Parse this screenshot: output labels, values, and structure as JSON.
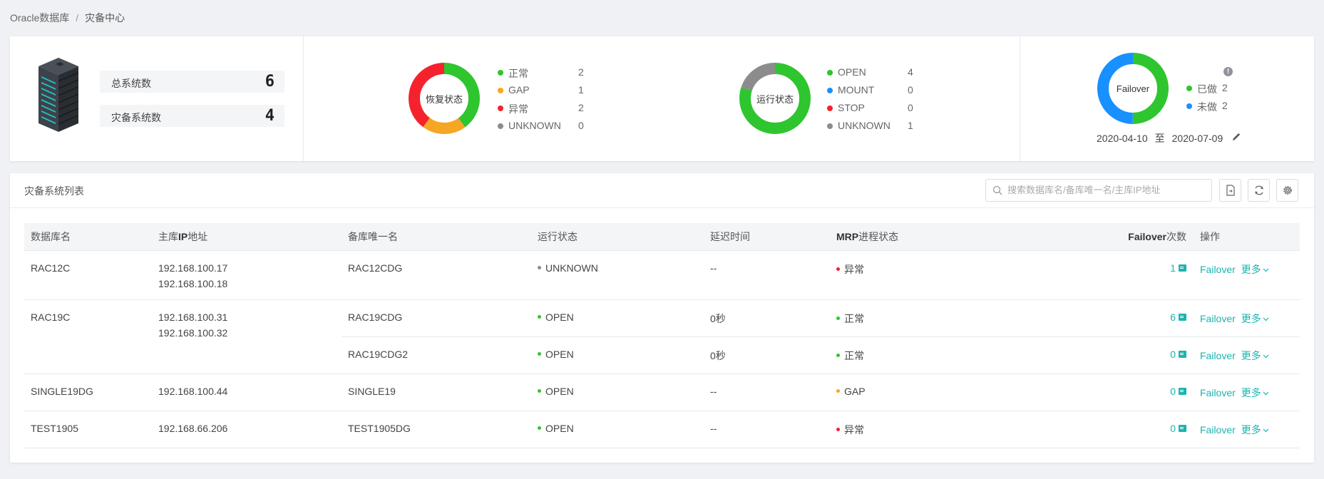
{
  "breadcrumb": {
    "root": "Oracle数据库",
    "sep": "/",
    "current": "灾备中心"
  },
  "summary": {
    "total_label": "总系统数",
    "total_value": "6",
    "dr_label": "灾备系统数",
    "dr_value": "4"
  },
  "recovery": {
    "center": "恢复状态",
    "items": [
      {
        "name": "正常",
        "count": "2",
        "color": "#2fc52f"
      },
      {
        "name": "GAP",
        "count": "1",
        "color": "#f5a623"
      },
      {
        "name": "异常",
        "count": "2",
        "color": "#f5222d"
      },
      {
        "name": "UNKNOWN",
        "count": "0",
        "color": "#8c8c8c"
      }
    ]
  },
  "running": {
    "center": "运行状态",
    "items": [
      {
        "name": "OPEN",
        "count": "4",
        "color": "#2fc52f"
      },
      {
        "name": "MOUNT",
        "count": "0",
        "color": "#1890ff"
      },
      {
        "name": "STOP",
        "count": "0",
        "color": "#f5222d"
      },
      {
        "name": "UNKNOWN",
        "count": "1",
        "color": "#8c8c8c"
      }
    ]
  },
  "failover": {
    "center": "Failover",
    "items": [
      {
        "name": "已做",
        "count": "2",
        "color": "#2fc52f"
      },
      {
        "name": "未做",
        "count": "2",
        "color": "#1890ff"
      }
    ],
    "date_from": "2020-04-10",
    "date_to_label": "至",
    "date_to": "2020-07-09"
  },
  "list": {
    "title": "灾备系统列表",
    "search_placeholder": "搜索数据库名/备库唯一名/主库IP地址",
    "columns": {
      "db_name": "数据库名",
      "primary_ip_a": "主库",
      "primary_ip_b": "IP",
      "primary_ip_c": "地址",
      "standby": "备库唯一名",
      "run_state": "运行状态",
      "delay": "延迟时间",
      "mrp_a": "MRP",
      "mrp_b": "进程状态",
      "fo_a": "Failover",
      "fo_b": "次数",
      "ops": "操作"
    },
    "op_failover": "Failover",
    "op_more": "更多",
    "groups": [
      {
        "db": "RAC12C",
        "ips": [
          "192.168.100.17",
          "192.168.100.18"
        ],
        "rows": [
          {
            "standby": "RAC12CDG",
            "state": "UNKNOWN",
            "state_color": "#8c8c8c",
            "delay": "--",
            "mrp": "异常",
            "mrp_color": "#f5222d",
            "fo": "1"
          }
        ]
      },
      {
        "db": "RAC19C",
        "ips": [
          "192.168.100.31",
          "192.168.100.32"
        ],
        "rows": [
          {
            "standby": "RAC19CDG",
            "state": "OPEN",
            "state_color": "#2fc52f",
            "delay": "0秒",
            "mrp": "正常",
            "mrp_color": "#2fc52f",
            "fo": "6"
          },
          {
            "standby": "RAC19CDG2",
            "state": "OPEN",
            "state_color": "#2fc52f",
            "delay": "0秒",
            "mrp": "正常",
            "mrp_color": "#2fc52f",
            "fo": "0"
          }
        ]
      },
      {
        "db": "SINGLE19DG",
        "ips": [
          "192.168.100.44"
        ],
        "rows": [
          {
            "standby": "SINGLE19",
            "state": "OPEN",
            "state_color": "#2fc52f",
            "delay": "--",
            "mrp": "GAP",
            "mrp_color": "#f5a623",
            "fo": "0"
          }
        ]
      },
      {
        "db": "TEST1905",
        "ips": [
          "192.168.66.206"
        ],
        "rows": [
          {
            "standby": "TEST1905DG",
            "state": "OPEN",
            "state_color": "#2fc52f",
            "delay": "--",
            "mrp": "异常",
            "mrp_color": "#f5222d",
            "fo": "0"
          }
        ]
      }
    ]
  }
}
